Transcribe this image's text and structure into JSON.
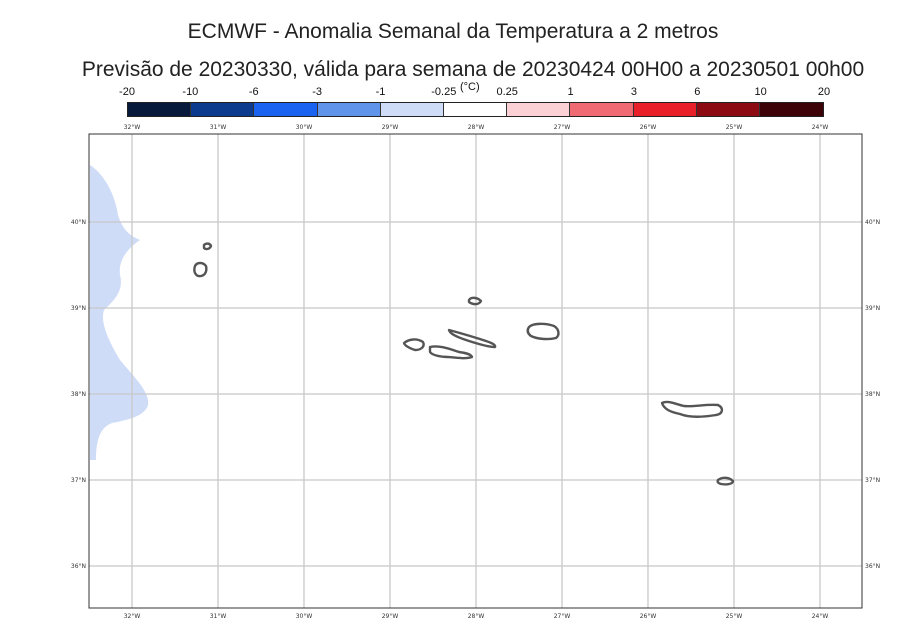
{
  "title": {
    "line1": "ECMWF - Anomalia Semanal da Temperatura a 2 metros",
    "line2": "Previsão de 20230330, válida para semana de 20230424 00H00 a 20230501 00h00"
  },
  "colorbar": {
    "unit": "(°C)",
    "labels": [
      "-20",
      "-10",
      "-6",
      "-3",
      "-1",
      "-0.25",
      "0.25",
      "1",
      "3",
      "6",
      "10",
      "20"
    ],
    "colors": [
      "#071a3c",
      "#0c3a8c",
      "#1a62f0",
      "#5f94ea",
      "#cfdcf7",
      "#ffffff",
      "#fbd1d6",
      "#ef6a72",
      "#e8202a",
      "#8c0a12",
      "#3d0208"
    ]
  },
  "map": {
    "lon_ticks": [
      "32°W",
      "31°W",
      "30°W",
      "29°W",
      "28°W",
      "27°W",
      "26°W",
      "25°W",
      "24°W"
    ],
    "lat_ticks": [
      "40°N",
      "39°N",
      "38°N",
      "37°N",
      "36°N"
    ],
    "anomaly_fill_color": "#cfdcf7",
    "coastline_color": "#555555",
    "grid_color": "#c8c8c8"
  }
}
